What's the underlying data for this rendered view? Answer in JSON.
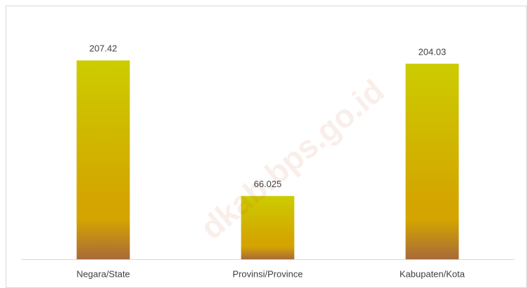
{
  "chart_data": {
    "type": "bar",
    "categories": [
      "Negara/State",
      "Provinsi/Province",
      "Kabupaten/Kota"
    ],
    "values": [
      207.42,
      66.025,
      204.03
    ],
    "color_stops": [
      "#cccc00",
      "#d4a400",
      "#a86a3a"
    ],
    "ylim": [
      0,
      250
    ],
    "watermark": "dkab.bps.go.id"
  }
}
